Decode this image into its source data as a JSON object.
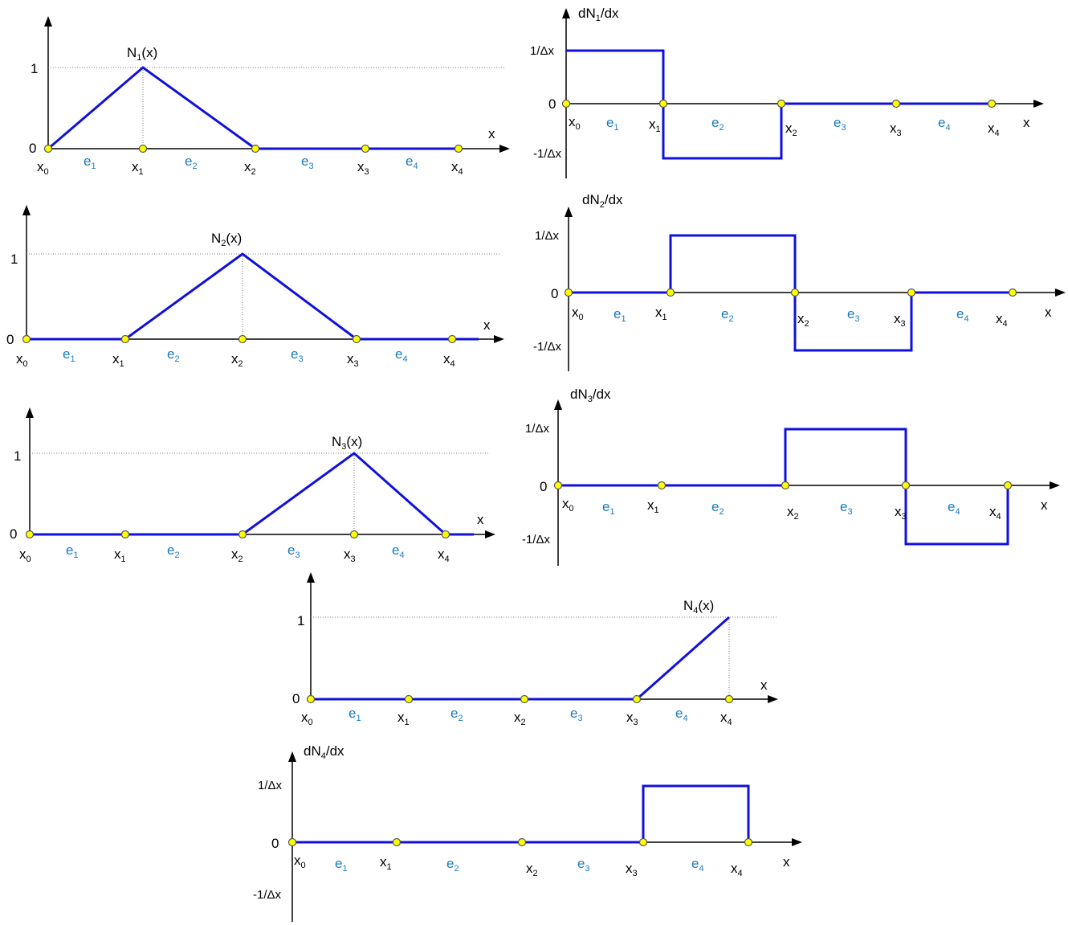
{
  "colors": {
    "curve": "#1010dd",
    "node_fill": "#ffff00",
    "element_label": "#1a7bbf",
    "axis": "#000000"
  },
  "labels": {
    "x_axis": "x",
    "nodes": [
      "x0",
      "x1",
      "x2",
      "x3",
      "x4"
    ],
    "elements": [
      "e1",
      "e2",
      "e3",
      "e4"
    ],
    "one": "1",
    "zero": "0",
    "pos_slope": "1/Δx",
    "neg_slope": "-1/Δx"
  },
  "charts": [
    {
      "id": "N1",
      "kind": "shape",
      "title": "N1(x)",
      "peak": 1
    },
    {
      "id": "N2",
      "kind": "shape",
      "title": "N2(x)",
      "peak": 2
    },
    {
      "id": "N3",
      "kind": "shape",
      "title": "N3(x)",
      "peak": 3
    },
    {
      "id": "N4",
      "kind": "shape",
      "title": "N4(x)",
      "peak": 4
    },
    {
      "id": "dN1",
      "kind": "derivative",
      "title": "dN1/dx",
      "node": 1
    },
    {
      "id": "dN2",
      "kind": "derivative",
      "title": "dN2/dx",
      "node": 2
    },
    {
      "id": "dN3",
      "kind": "derivative",
      "title": "dN3/dx",
      "node": 3
    },
    {
      "id": "dN4",
      "kind": "derivative",
      "title": "dN4/dx",
      "node": 4
    }
  ]
}
